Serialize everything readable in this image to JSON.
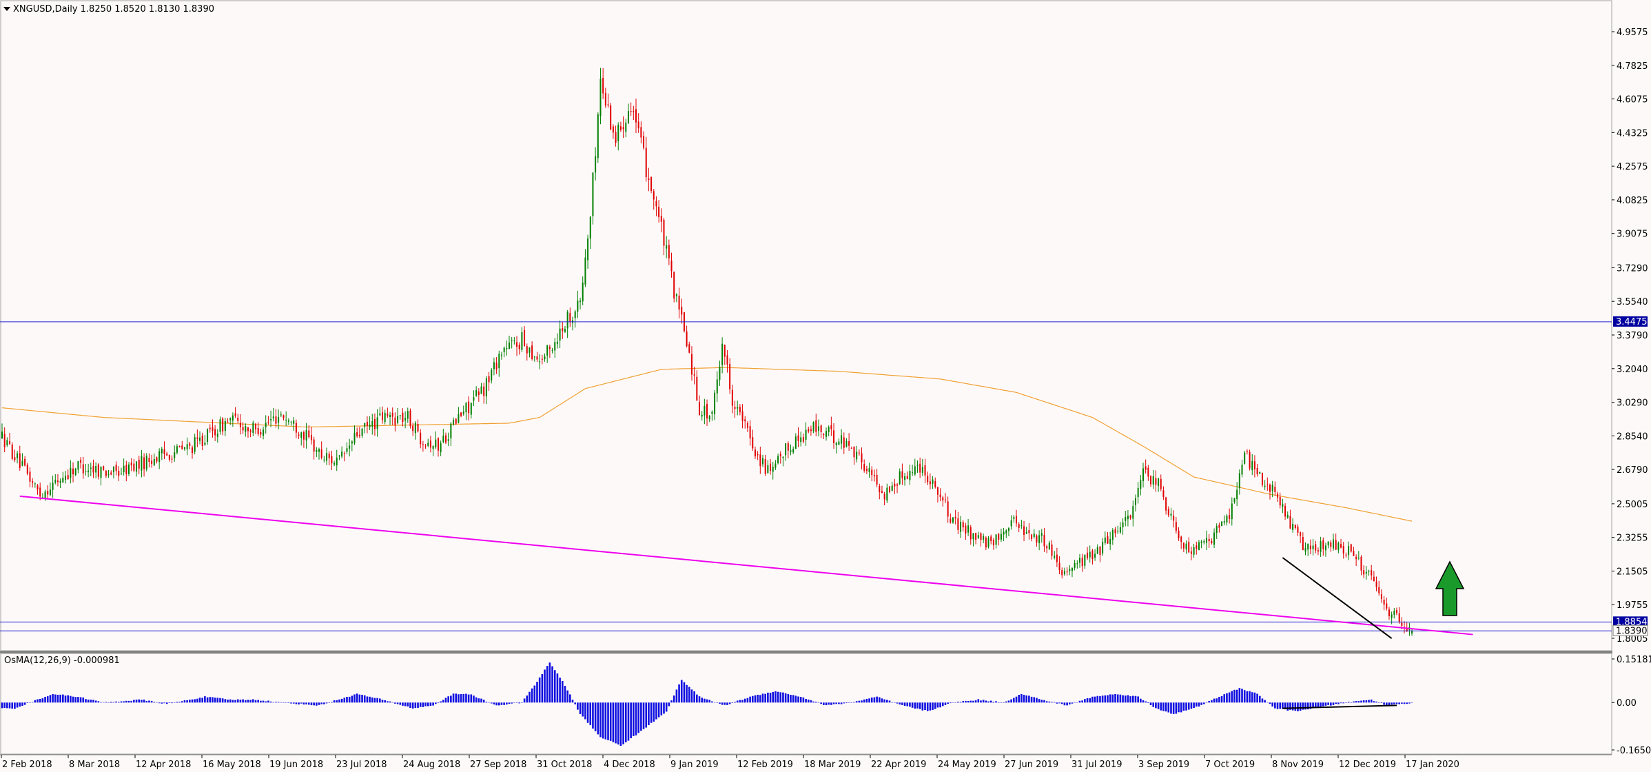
{
  "header": {
    "symbol_line": "XNGUSD,Daily  1.8250 1.8520 1.8130 1.8390",
    "indicator_line": "OsMA(12,26,9) -0.000981"
  },
  "colors": {
    "background": "#fdf9f9",
    "bull": "#008000",
    "bear": "#e00000",
    "ma": "#f0a030",
    "support_resistance": "#2020d0",
    "trendline": "#ee00ee",
    "divergence": "#000000",
    "osma": "#1010e0",
    "arrow": "#1a9a2a"
  },
  "chart_data": {
    "type": "candlestick",
    "symbol": "XNGUSD",
    "timeframe": "Daily",
    "last_bar": {
      "open": 1.825,
      "high": 1.852,
      "low": 1.813,
      "close": 1.839
    },
    "price_axis": {
      "ticks": [
        "4.9575",
        "4.7825",
        "4.6075",
        "4.4325",
        "4.2575",
        "4.0825",
        "3.9075",
        "3.7290",
        "3.5540",
        "3.3790",
        "3.2040",
        "3.0290",
        "2.8540",
        "2.6790",
        "2.5005",
        "2.3255",
        "2.1505",
        "1.9755",
        "1.8005"
      ],
      "ylim": [
        1.8005,
        4.9575
      ]
    },
    "horizontal_levels": [
      {
        "label": "3.4475",
        "value": 3.4475
      },
      {
        "label": "1.8854",
        "value": 1.8854
      },
      {
        "label": "1.8390",
        "value": 1.839
      }
    ],
    "x_axis": {
      "labels": [
        "2 Feb 2018",
        "8 Mar 2018",
        "12 Apr 2018",
        "16 May 2018",
        "19 Jun 2018",
        "23 Jul 2018",
        "24 Aug 2018",
        "27 Sep 2018",
        "31 Oct 2018",
        "4 Dec 2018",
        "9 Jan 2019",
        "12 Feb 2019",
        "18 Mar 2019",
        "22 Apr 2019",
        "24 May 2019",
        "27 Jun 2019",
        "31 Jul 2019",
        "3 Sep 2019",
        "7 Oct 2019",
        "8 Nov 2019",
        "12 Dec 2019",
        "17 Jan 2020"
      ]
    },
    "price_path": [
      [
        0,
        2.85
      ],
      [
        10,
        2.65
      ],
      [
        15,
        2.55
      ],
      [
        30,
        2.7
      ],
      [
        45,
        2.66
      ],
      [
        60,
        2.74
      ],
      [
        75,
        2.8
      ],
      [
        90,
        2.94
      ],
      [
        100,
        2.88
      ],
      [
        110,
        2.97
      ],
      [
        118,
        2.88
      ],
      [
        126,
        2.75
      ],
      [
        133,
        2.72
      ],
      [
        140,
        2.86
      ],
      [
        150,
        2.95
      ],
      [
        160,
        2.95
      ],
      [
        165,
        2.85
      ],
      [
        172,
        2.8
      ],
      [
        180,
        2.95
      ],
      [
        190,
        3.1
      ],
      [
        197,
        3.3
      ],
      [
        205,
        3.35
      ],
      [
        212,
        3.25
      ],
      [
        216,
        3.3
      ],
      [
        222,
        3.45
      ],
      [
        228,
        3.55
      ],
      [
        232,
        4.0
      ],
      [
        236,
        4.7
      ],
      [
        242,
        4.4
      ],
      [
        248,
        4.6
      ],
      [
        253,
        4.3
      ],
      [
        258,
        4.05
      ],
      [
        262,
        3.8
      ],
      [
        266,
        3.55
      ],
      [
        270,
        3.35
      ],
      [
        275,
        3.0
      ],
      [
        280,
        2.95
      ],
      [
        284,
        3.35
      ],
      [
        288,
        3.05
      ],
      [
        293,
        2.9
      ],
      [
        298,
        2.75
      ],
      [
        303,
        2.65
      ],
      [
        310,
        2.8
      ],
      [
        320,
        2.9
      ],
      [
        328,
        2.85
      ],
      [
        335,
        2.8
      ],
      [
        340,
        2.7
      ],
      [
        348,
        2.55
      ],
      [
        355,
        2.65
      ],
      [
        362,
        2.7
      ],
      [
        368,
        2.6
      ],
      [
        375,
        2.4
      ],
      [
        382,
        2.35
      ],
      [
        390,
        2.28
      ],
      [
        398,
        2.42
      ],
      [
        405,
        2.35
      ],
      [
        412,
        2.3
      ],
      [
        418,
        2.15
      ],
      [
        425,
        2.2
      ],
      [
        432,
        2.25
      ],
      [
        438,
        2.35
      ],
      [
        445,
        2.45
      ],
      [
        450,
        2.65
      ],
      [
        456,
        2.6
      ],
      [
        462,
        2.4
      ],
      [
        468,
        2.25
      ],
      [
        476,
        2.3
      ],
      [
        484,
        2.45
      ],
      [
        490,
        2.75
      ],
      [
        496,
        2.65
      ],
      [
        502,
        2.55
      ],
      [
        508,
        2.4
      ],
      [
        512,
        2.3
      ],
      [
        516,
        2.25
      ],
      [
        522,
        2.3
      ],
      [
        528,
        2.28
      ],
      [
        534,
        2.22
      ],
      [
        540,
        2.1
      ],
      [
        546,
        1.95
      ],
      [
        551,
        1.9
      ],
      [
        556,
        1.84
      ]
    ],
    "moving_average": {
      "path": [
        [
          0,
          3.0
        ],
        [
          40,
          2.95
        ],
        [
          120,
          2.9
        ],
        [
          200,
          2.92
        ],
        [
          212,
          2.95
        ],
        [
          230,
          3.1
        ],
        [
          260,
          3.2
        ],
        [
          285,
          3.21
        ],
        [
          330,
          3.19
        ],
        [
          370,
          3.15
        ],
        [
          400,
          3.08
        ],
        [
          430,
          2.95
        ],
        [
          450,
          2.8
        ],
        [
          470,
          2.64
        ],
        [
          500,
          2.55
        ],
        [
          530,
          2.48
        ],
        [
          556,
          2.41
        ]
      ]
    },
    "trendline": {
      "from": [
        7,
        2.54
      ],
      "to": [
        580,
        1.82
      ]
    },
    "divergence_lines": {
      "price": {
        "from": [
          505,
          2.22
        ],
        "to": [
          548,
          1.8
        ]
      },
      "oscillator": {
        "from": [
          505,
          -0.02
        ],
        "to": [
          550,
          -0.01
        ]
      }
    },
    "oscillator": {
      "name": "OsMA(12,26,9)",
      "value": -0.000981,
      "ticks": [
        "0.15181",
        "0.00",
        "-0.16503"
      ],
      "ylim": [
        -0.16503,
        0.15181
      ],
      "path": [
        [
          0,
          -0.02
        ],
        [
          5,
          -0.02
        ],
        [
          20,
          0.03
        ],
        [
          30,
          0.02
        ],
        [
          40,
          0.0
        ],
        [
          55,
          0.01
        ],
        [
          65,
          -0.005
        ],
        [
          80,
          0.02
        ],
        [
          90,
          0.01
        ],
        [
          100,
          0.01
        ],
        [
          110,
          0.0
        ],
        [
          125,
          -0.01
        ],
        [
          140,
          0.03
        ],
        [
          150,
          0.01
        ],
        [
          162,
          -0.02
        ],
        [
          170,
          -0.01
        ],
        [
          178,
          0.03
        ],
        [
          184,
          0.03
        ],
        [
          195,
          -0.01
        ],
        [
          205,
          0.0
        ],
        [
          210,
          0.06
        ],
        [
          216,
          0.14
        ],
        [
          222,
          0.06
        ],
        [
          228,
          -0.04
        ],
        [
          236,
          -0.12
        ],
        [
          244,
          -0.15
        ],
        [
          252,
          -0.1
        ],
        [
          262,
          -0.03
        ],
        [
          268,
          0.08
        ],
        [
          275,
          0.02
        ],
        [
          285,
          -0.01
        ],
        [
          295,
          0.02
        ],
        [
          305,
          0.04
        ],
        [
          315,
          0.02
        ],
        [
          325,
          -0.01
        ],
        [
          335,
          0.0
        ],
        [
          345,
          0.02
        ],
        [
          355,
          -0.01
        ],
        [
          365,
          -0.03
        ],
        [
          375,
          0.0
        ],
        [
          385,
          0.01
        ],
        [
          395,
          0.0
        ],
        [
          402,
          0.03
        ],
        [
          410,
          0.01
        ],
        [
          420,
          -0.01
        ],
        [
          430,
          0.02
        ],
        [
          440,
          0.03
        ],
        [
          448,
          0.02
        ],
        [
          455,
          -0.02
        ],
        [
          462,
          -0.04
        ],
        [
          470,
          -0.02
        ],
        [
          480,
          0.02
        ],
        [
          488,
          0.05
        ],
        [
          495,
          0.03
        ],
        [
          502,
          -0.02
        ],
        [
          510,
          -0.03
        ],
        [
          520,
          -0.015
        ],
        [
          530,
          0.0
        ],
        [
          540,
          0.01
        ],
        [
          546,
          -0.01
        ],
        [
          553,
          -0.003
        ]
      ]
    }
  }
}
